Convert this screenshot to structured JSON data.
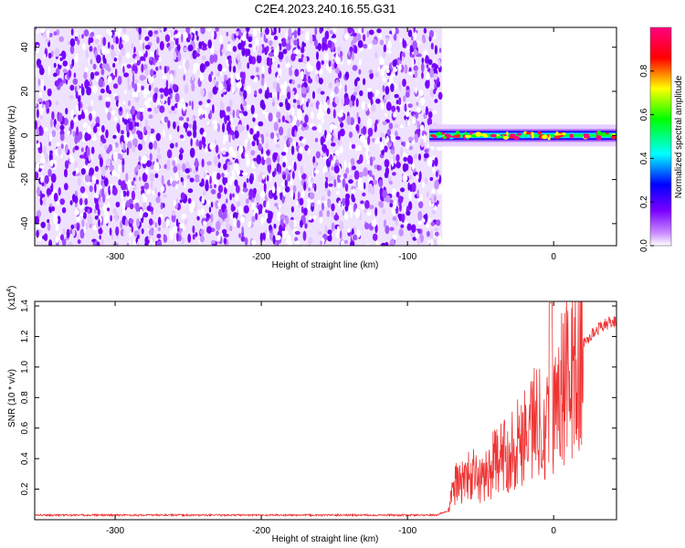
{
  "title": "C2E4.2023.240.16.55.G31",
  "chart_data": [
    {
      "type": "heatmap",
      "title": "C2E4.2023.240.16.55.G31",
      "xlabel": "Height of straight line (km)",
      "ylabel": "Frequency (Hz)",
      "xlim": [
        -355,
        43
      ],
      "ylim": [
        -50,
        49
      ],
      "x_ticks": [
        "-300",
        "-200",
        "-100",
        "0"
      ],
      "x_tick_values": [
        -300,
        -200,
        -100,
        0
      ],
      "y_ticks": [
        "-40",
        "-20",
        "0",
        "20",
        "40"
      ],
      "y_tick_values": [
        -40,
        -20,
        0,
        20,
        40
      ],
      "noise_region_x": [
        -355,
        -80
      ],
      "signal_region_x": [
        -85,
        43
      ],
      "signal_frequency_hz": 0,
      "colorbar": {
        "label": "Normalized spectral amplitude",
        "range": [
          0,
          1
        ],
        "ticks": [
          "0.0",
          "0.2",
          "0.4",
          "0.6",
          "0.8"
        ],
        "tick_values": [
          0.0,
          0.2,
          0.4,
          0.6,
          0.8
        ],
        "colors": [
          "#ffffff",
          "#7a00ff",
          "#0000ff",
          "#00ffff",
          "#00ff00",
          "#ffff00",
          "#ff0000",
          "#ff0080"
        ]
      }
    },
    {
      "type": "line",
      "xlabel": "Height of straight line (km)",
      "ylabel": "SNR (10 * v/v)",
      "y_multiplier_label": "(x10",
      "y_multiplier_exp": "4",
      "y_multiplier_close": ")",
      "xlim": [
        -355,
        43
      ],
      "ylim": [
        0,
        1.43
      ],
      "x_ticks": [
        "-300",
        "-200",
        "-100",
        "0"
      ],
      "x_tick_values": [
        -300,
        -200,
        -100,
        0
      ],
      "y_ticks": [
        "0.2",
        "0.4",
        "0.6",
        "0.8",
        "1.0",
        "1.2",
        "1.4"
      ],
      "y_tick_values": [
        0.2,
        0.4,
        0.6,
        0.8,
        1.0,
        1.2,
        1.4
      ],
      "line_color": "#ee3333",
      "series": [
        {
          "x": [
            -355,
            -300,
            -250,
            -200,
            -150,
            -100,
            -80,
            -72,
            -68,
            -60,
            -55,
            -50,
            -45,
            -40,
            -35,
            -30,
            -25,
            -20,
            -15,
            -10,
            -5,
            0,
            5,
            10,
            15,
            20,
            25,
            30,
            35,
            43
          ],
          "values": [
            0.03,
            0.03,
            0.03,
            0.03,
            0.03,
            0.03,
            0.03,
            0.06,
            0.25,
            0.3,
            0.33,
            0.28,
            0.35,
            0.42,
            0.45,
            0.5,
            0.55,
            0.65,
            0.7,
            0.72,
            0.75,
            0.82,
            0.95,
            1.02,
            1.08,
            1.15,
            1.2,
            1.25,
            1.28,
            1.3
          ]
        }
      ]
    }
  ]
}
